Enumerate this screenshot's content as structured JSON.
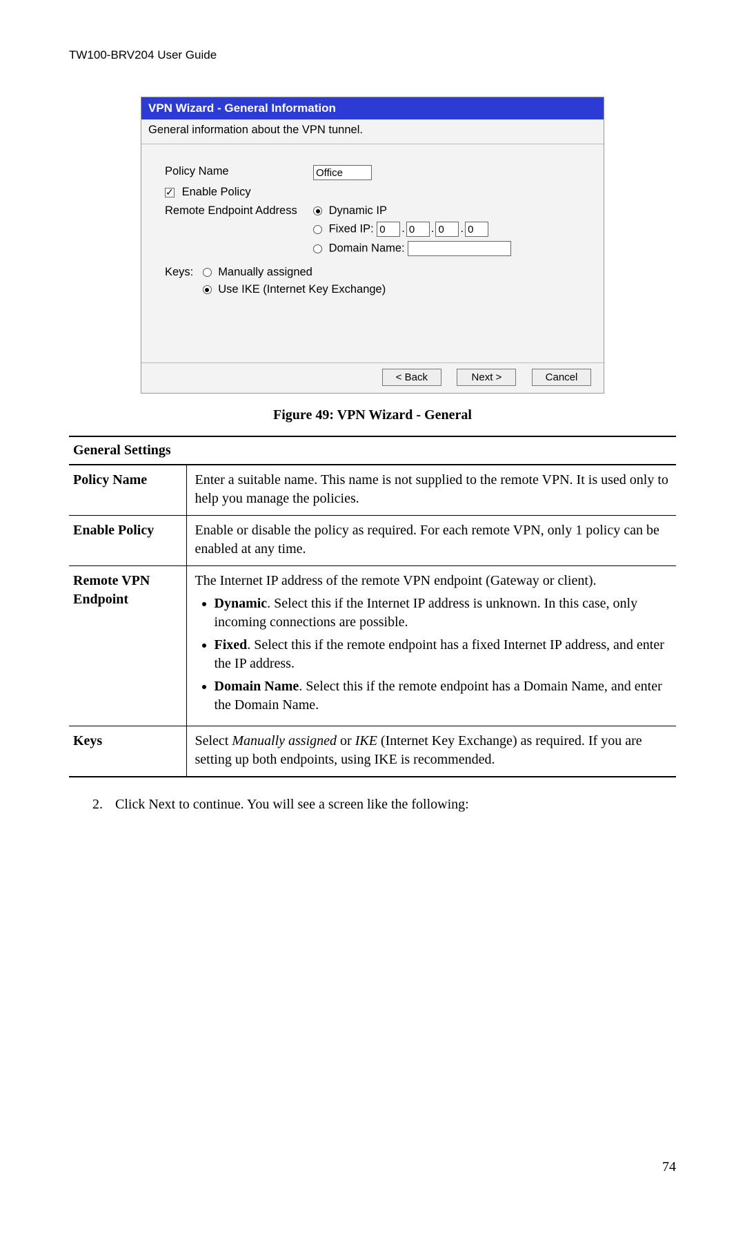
{
  "header": {
    "guide_title": "TW100-BRV204 User Guide"
  },
  "wizard": {
    "titlebar": "VPN Wizard - General Information",
    "subtitle": "General information about the VPN tunnel.",
    "policy_name_label": "Policy Name",
    "policy_name_value": "Office",
    "enable_policy_label": "Enable Policy",
    "enable_policy_checked": true,
    "remote_endpoint_label": "Remote Endpoint Address",
    "remote": {
      "dynamic_label": "Dynamic IP",
      "dynamic_selected": true,
      "fixed_label": "Fixed IP:",
      "fixed_selected": false,
      "ip": [
        "0",
        "0",
        "0",
        "0"
      ],
      "domain_label": "Domain Name:",
      "domain_selected": false,
      "domain_value": ""
    },
    "keys_label": "Keys:",
    "keys": {
      "manual_label": "Manually assigned",
      "manual_selected": false,
      "ike_label": "Use IKE (Internet Key Exchange)",
      "ike_selected": true
    },
    "buttons": {
      "back": "< Back",
      "next": "Next >",
      "cancel": "Cancel"
    }
  },
  "figure_caption": "Figure 49: VPN Wizard - General",
  "table": {
    "section_head": "General Settings",
    "rows": {
      "policy_name": {
        "label": "Policy Name",
        "desc": "Enter a suitable name. This name is not supplied to the remote VPN. It is used only to help you manage the policies."
      },
      "enable_policy": {
        "label": "Enable Policy",
        "desc": "Enable or disable the policy as required. For each remote VPN, only 1 policy can be enabled at any time."
      },
      "remote_endpoint": {
        "label": "Remote VPN Endpoint",
        "intro": "The Internet IP address of the remote VPN endpoint (Gateway or client).",
        "items": {
          "dynamic": {
            "head": "Dynamic",
            "tail": ". Select this if the Internet IP address is unknown. In this case, only incoming connections are possible."
          },
          "fixed": {
            "head": "Fixed",
            "tail": ". Select this if the remote endpoint has a fixed Internet IP address, and enter the IP address."
          },
          "domain": {
            "head": "Domain Name",
            "tail": ". Select this if the remote endpoint has a Domain Name, and enter the Domain Name."
          }
        }
      },
      "keys": {
        "label": "Keys",
        "pre": "Select ",
        "ma": "Manually assigned",
        "mid": " or ",
        "ike": "IKE",
        "post": " (Internet Key Exchange) as required. If you are setting up both endpoints, using IKE is recommended."
      }
    }
  },
  "step": {
    "num": "2.",
    "pre": "Click ",
    "next": "Next",
    "post": " to continue. You will see a screen like the following:"
  },
  "page_number": "74"
}
